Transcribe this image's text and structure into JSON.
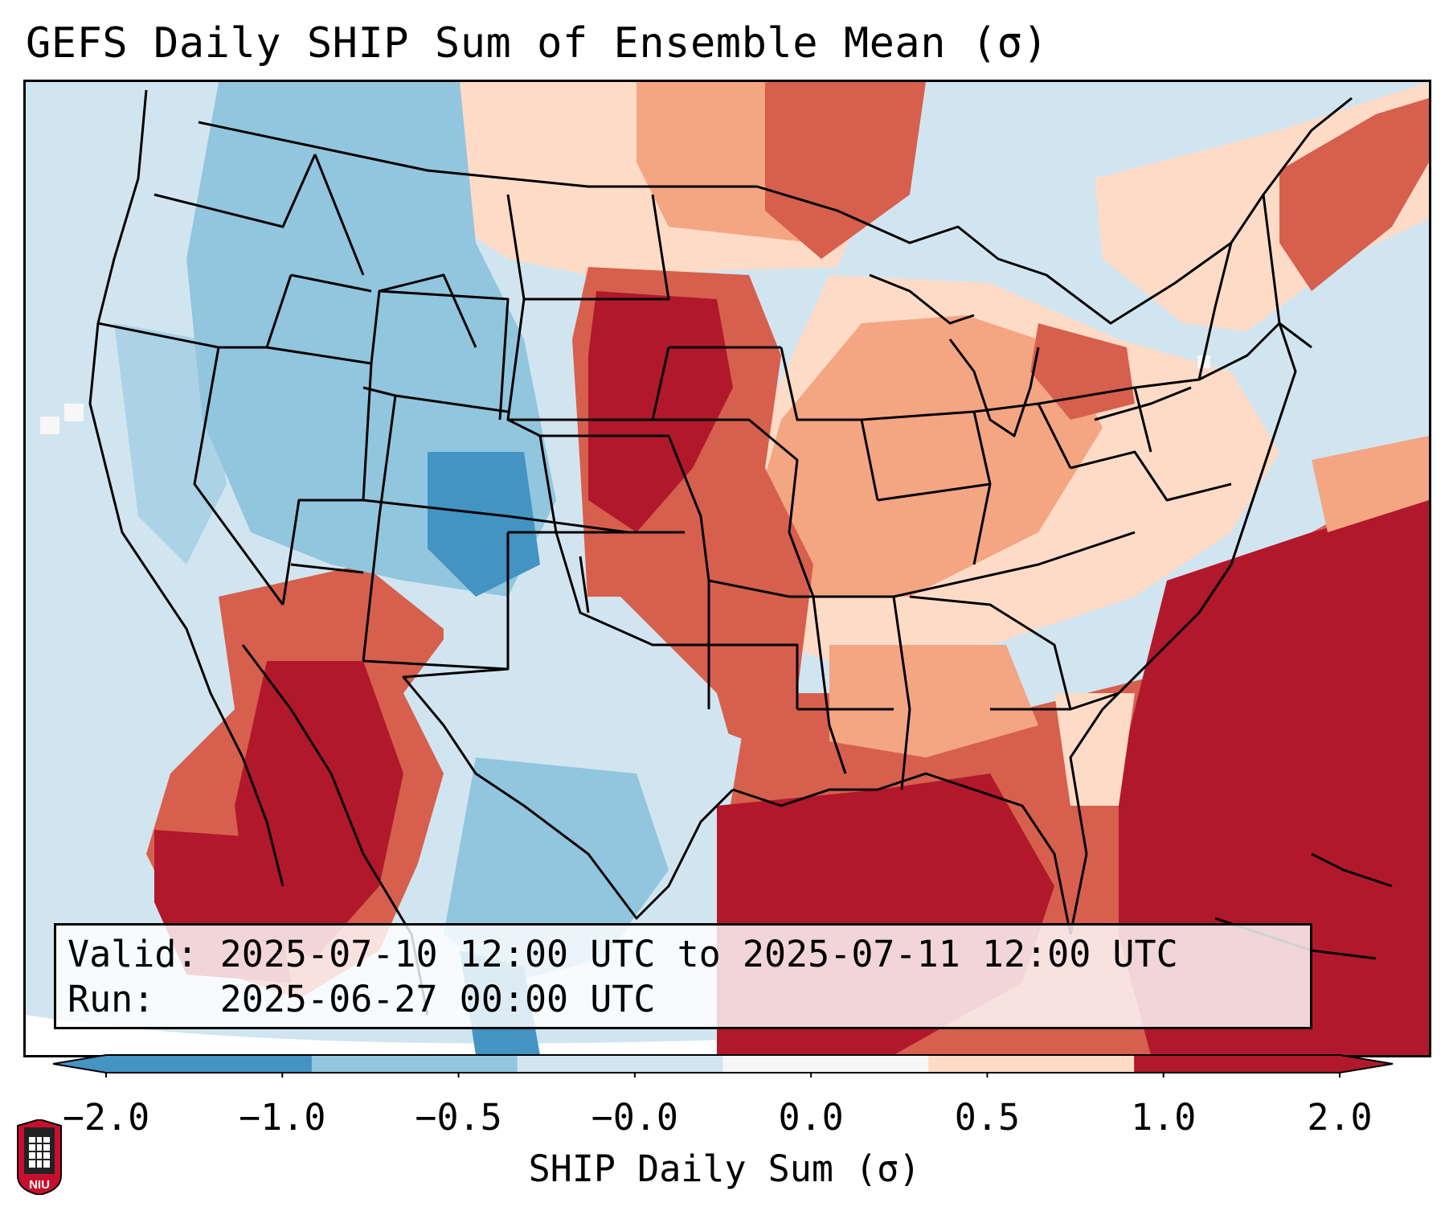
{
  "title": "GEFS Daily SHIP Sum of Ensemble Mean (σ)",
  "info": {
    "valid_line": "Valid: 2025-07-10 12:00 UTC to 2025-07-11 12:00 UTC",
    "run_line": "Run:   2025-06-27 00:00 UTC"
  },
  "colorbar": {
    "label": "SHIP Daily Sum (σ)",
    "ticks": [
      "−2.0",
      "−1.0",
      "−0.5",
      "−0.0",
      "0.0",
      "0.5",
      "1.0",
      "2.0"
    ],
    "colors": [
      "#4393c3",
      "#92c5de",
      "#d1e5f0",
      "#f7f7f7",
      "#fddbc7",
      "#f4a582",
      "#d6604d",
      "#b2182b"
    ],
    "extend": "both"
  },
  "logo": {
    "text": "NIU",
    "colors": {
      "shield": "#c8102e",
      "tower": "#222222"
    }
  },
  "map": {
    "projection": "Lambert conformal",
    "region": "Contiguous United States",
    "background_color": "#d1e5f0"
  }
}
